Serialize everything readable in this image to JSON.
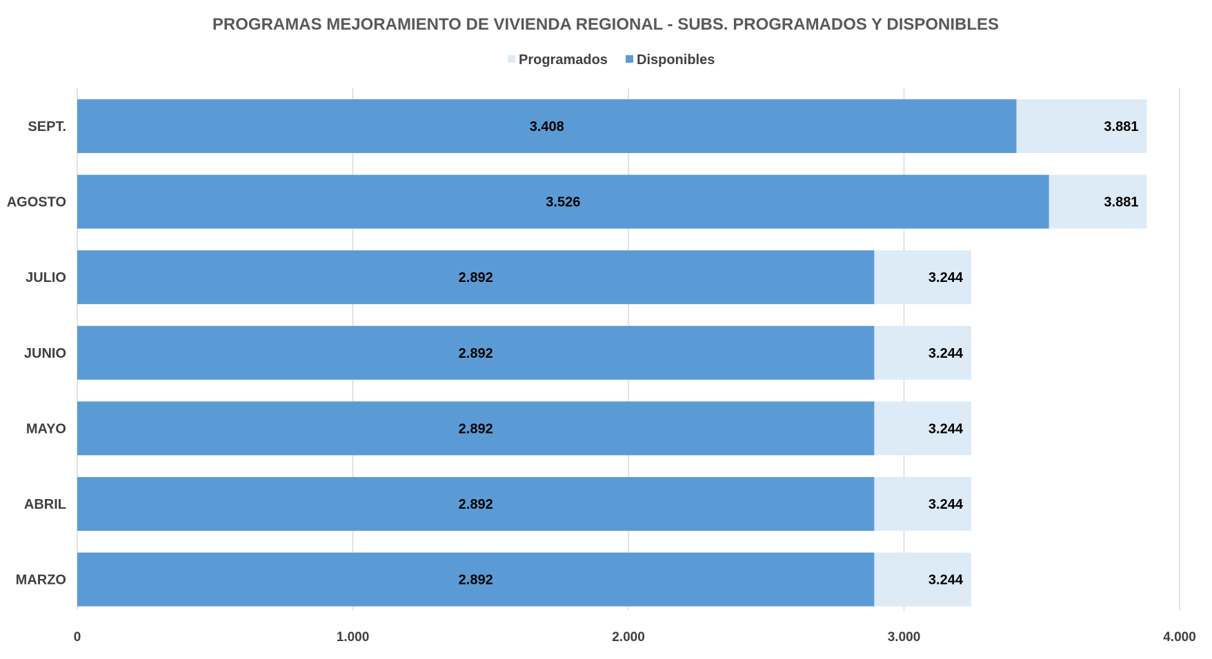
{
  "chart_data": {
    "type": "bar",
    "orientation": "horizontal",
    "title": "PROGRAMAS MEJORAMIENTO DE VIVIENDA REGIONAL -  SUBS. PROGRAMADOS Y DISPONIBLES",
    "categories": [
      "SEPT.",
      "AGOSTO",
      "JULIO",
      "JUNIO",
      "MAYO",
      "ABRIL",
      "MARZO"
    ],
    "series": [
      {
        "name": "Programados",
        "color": "#DDEBF7",
        "values": [
          3881,
          3881,
          3244,
          3244,
          3244,
          3244,
          3244
        ],
        "labels": [
          "3.881",
          "3.881",
          "3.244",
          "3.244",
          "3.244",
          "3.244",
          "3.244"
        ]
      },
      {
        "name": "Disponibles",
        "color": "#5B9BD5",
        "values": [
          3408,
          3526,
          2892,
          2892,
          2892,
          2892,
          2892
        ],
        "labels": [
          "3.408",
          "3.526",
          "2.892",
          "2.892",
          "2.892",
          "2.892",
          "2.892"
        ]
      }
    ],
    "xlim": [
      0,
      4000
    ],
    "xticks": [
      0,
      1000,
      2000,
      3000,
      4000
    ],
    "xtick_labels": [
      "0",
      "1.000",
      "2.000",
      "3.000",
      "4.000"
    ],
    "gridlines": true,
    "legend_position": "top-center",
    "xlabel": "",
    "ylabel": ""
  }
}
